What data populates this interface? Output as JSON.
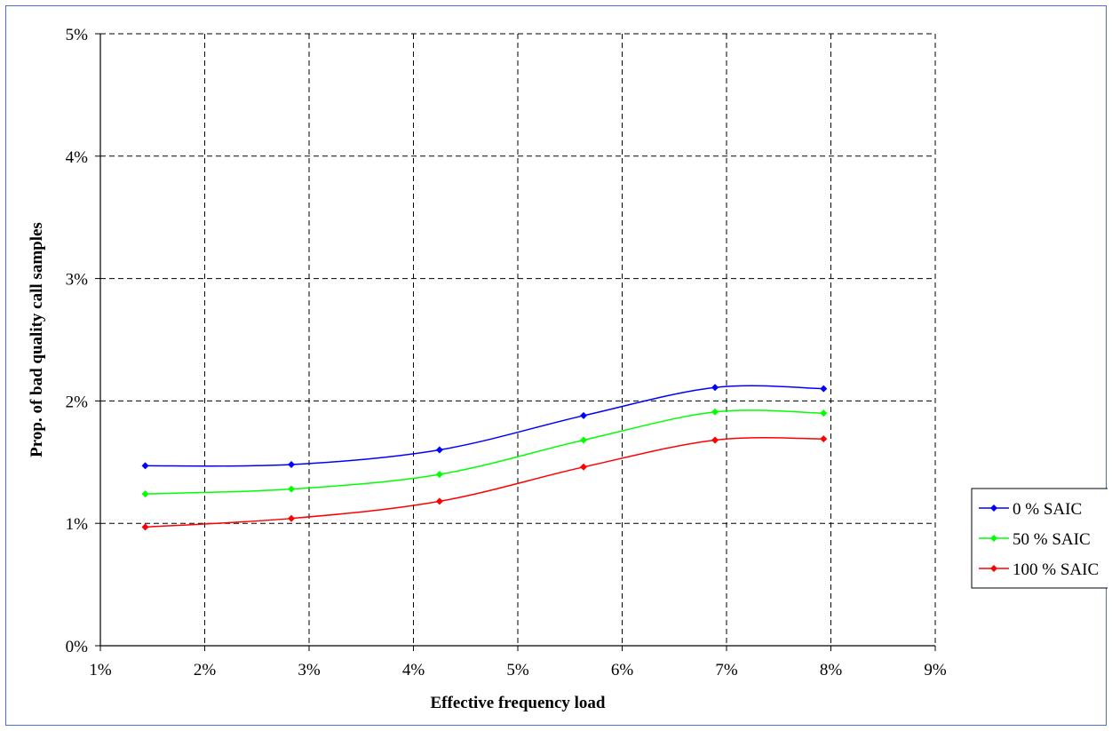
{
  "chart_data": {
    "type": "line",
    "title": "",
    "xlabel": "Effective frequency load",
    "ylabel": "Prop. of bad quality call samples",
    "xlim": [
      0.01,
      0.09
    ],
    "ylim": [
      0,
      0.05
    ],
    "x_ticks": [
      "1%",
      "2%",
      "3%",
      "4%",
      "5%",
      "6%",
      "7%",
      "8%",
      "9%"
    ],
    "y_ticks": [
      "0%",
      "1%",
      "2%",
      "3%",
      "4%",
      "5%"
    ],
    "grid": true,
    "legend_position": "right",
    "series": [
      {
        "name": "0 % SAIC",
        "color": "#0000ff",
        "x": [
          0.0143,
          0.0283,
          0.0425,
          0.0563,
          0.0689,
          0.0793
        ],
        "y": [
          0.0147,
          0.0148,
          0.016,
          0.0188,
          0.0211,
          0.021
        ]
      },
      {
        "name": "50 % SAIC",
        "color": "#00ff00",
        "x": [
          0.0143,
          0.0283,
          0.0425,
          0.0563,
          0.0689,
          0.0793
        ],
        "y": [
          0.0124,
          0.0128,
          0.014,
          0.0168,
          0.0191,
          0.019
        ]
      },
      {
        "name": "100 % SAIC",
        "color": "#ff0000",
        "x": [
          0.0143,
          0.0283,
          0.0425,
          0.0563,
          0.0689,
          0.0793
        ],
        "y": [
          0.0097,
          0.0104,
          0.0118,
          0.0146,
          0.0168,
          0.0169
        ]
      }
    ]
  }
}
